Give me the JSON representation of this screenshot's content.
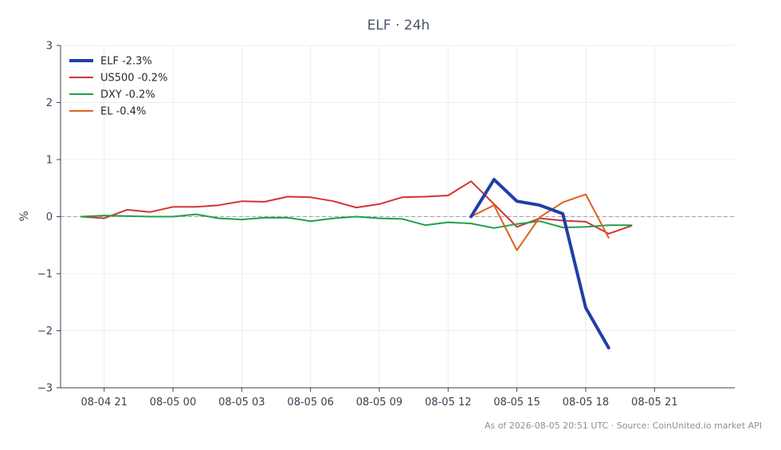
{
  "chart_data": {
    "type": "line",
    "title": "ELF · 24h",
    "ylabel": "%",
    "xlabel": "",
    "ylim": [
      -3,
      3
    ],
    "xlim_hours": [
      -4.9,
      24.5
    ],
    "yticks": [
      -3,
      -2,
      -1,
      0,
      1,
      2,
      3
    ],
    "ytick_labels": [
      "−3",
      "−2",
      "−1",
      "0",
      "1",
      "2",
      "3"
    ],
    "xticks": [
      {
        "t": -3,
        "label": "08-04 21"
      },
      {
        "t": 0,
        "label": "08-05 00"
      },
      {
        "t": 3,
        "label": "08-05 03"
      },
      {
        "t": 6,
        "label": "08-05 06"
      },
      {
        "t": 9,
        "label": "08-05 09"
      },
      {
        "t": 12,
        "label": "08-05 12"
      },
      {
        "t": 15,
        "label": "08-05 15"
      },
      {
        "t": 18,
        "label": "08-05 18"
      },
      {
        "t": 21,
        "label": "08-05 21"
      }
    ],
    "grid": true,
    "zero_line": true,
    "legend_position": "top-left",
    "series": [
      {
        "name": "ELF -2.3%",
        "color": "#1f3fa8",
        "width": 4,
        "points": [
          [
            13,
            0.0
          ],
          [
            14,
            0.65
          ],
          [
            15,
            0.27
          ],
          [
            16,
            0.2
          ],
          [
            17,
            0.05
          ],
          [
            18,
            -1.6
          ],
          [
            19,
            -2.3
          ]
        ]
      },
      {
        "name": "US500 -0.2%",
        "color": "#d13434",
        "width": 2,
        "points": [
          [
            -4,
            0.0
          ],
          [
            -3,
            -0.03
          ],
          [
            -2,
            0.12
          ],
          [
            -1,
            0.08
          ],
          [
            0,
            0.17
          ],
          [
            1,
            0.17
          ],
          [
            2,
            0.2
          ],
          [
            3,
            0.27
          ],
          [
            4,
            0.26
          ],
          [
            5,
            0.35
          ],
          [
            6,
            0.34
          ],
          [
            7,
            0.27
          ],
          [
            8,
            0.16
          ],
          [
            9,
            0.22
          ],
          [
            10,
            0.34
          ],
          [
            11,
            0.35
          ],
          [
            12,
            0.37
          ],
          [
            13,
            0.62
          ],
          [
            14,
            0.22
          ],
          [
            15,
            -0.18
          ],
          [
            16,
            -0.03
          ],
          [
            17,
            -0.07
          ],
          [
            18,
            -0.09
          ],
          [
            19,
            -0.3
          ],
          [
            20,
            -0.16
          ]
        ]
      },
      {
        "name": "DXY -0.2%",
        "color": "#22a04a",
        "width": 2,
        "points": [
          [
            -4,
            0.0
          ],
          [
            -3,
            0.02
          ],
          [
            -2,
            0.01
          ],
          [
            -1,
            0.0
          ],
          [
            0,
            0.0
          ],
          [
            1,
            0.04
          ],
          [
            2,
            -0.03
          ],
          [
            3,
            -0.05
          ],
          [
            4,
            -0.02
          ],
          [
            5,
            -0.02
          ],
          [
            6,
            -0.08
          ],
          [
            7,
            -0.03
          ],
          [
            8,
            0.0
          ],
          [
            9,
            -0.03
          ],
          [
            10,
            -0.04
          ],
          [
            11,
            -0.15
          ],
          [
            12,
            -0.1
          ],
          [
            13,
            -0.12
          ],
          [
            14,
            -0.2
          ],
          [
            15,
            -0.13
          ],
          [
            16,
            -0.08
          ],
          [
            17,
            -0.19
          ],
          [
            18,
            -0.18
          ],
          [
            19,
            -0.15
          ],
          [
            20,
            -0.15
          ]
        ]
      },
      {
        "name": "EL -0.4%",
        "color": "#e0601c",
        "width": 2,
        "points": [
          [
            13,
            0.0
          ],
          [
            14,
            0.2
          ],
          [
            15,
            -0.59
          ],
          [
            16,
            -0.01
          ],
          [
            17,
            0.25
          ],
          [
            18,
            0.39
          ],
          [
            19,
            -0.37
          ]
        ]
      }
    ]
  },
  "footer": {
    "text": "As of 2026-08-05 20:51 UTC · Source: CoinUnited.io market API"
  }
}
